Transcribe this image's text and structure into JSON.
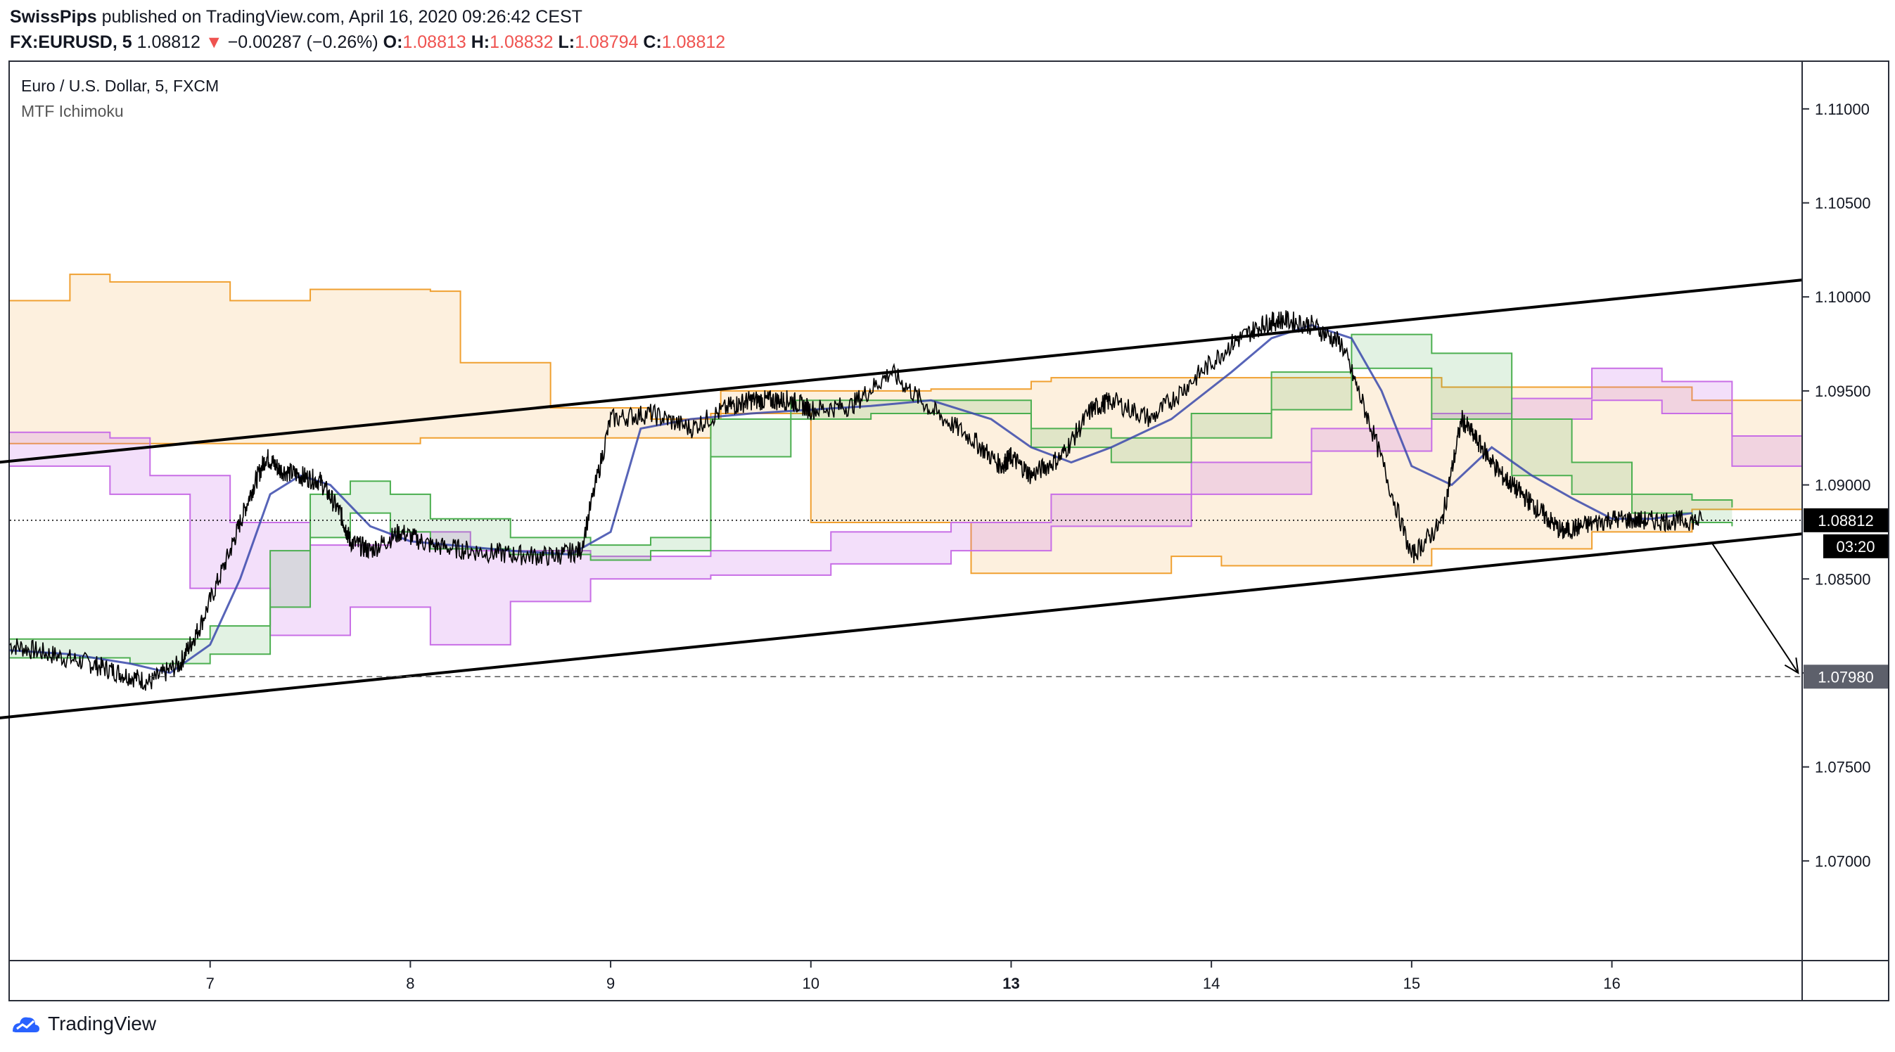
{
  "header": {
    "author": "SwissPips",
    "published": "published on TradingView.com, April 16, 2020 09:26:42 CEST",
    "symbol": "FX:EURUSD, 5",
    "last": "1.08812",
    "change_arrow": "▼",
    "change": "−0.00287 (−0.26%)",
    "o_label": "O:",
    "o_value": "1.08813",
    "h_label": "H:",
    "h_value": "1.08832",
    "l_label": "L:",
    "l_value": "1.08794",
    "c_label": "C:",
    "c_value": "1.08812"
  },
  "legend": {
    "instrument": "Euro / U.S. Dollar, 5, FXCM",
    "indicator": "MTF Ichimoku"
  },
  "footer": {
    "brand": "TradingView",
    "logo_icon": "tradingview-logo-icon"
  },
  "colors": {
    "price": "#000000",
    "cloud_orange": "#f0a030",
    "cloud_purple": "#c86ee6",
    "cloud_green": "#4caf50",
    "fast_blue": "#3949ab",
    "accent_red": "#ef5350"
  },
  "chart_data": {
    "type": "line",
    "title": "Euro / U.S. Dollar, 5, FXCM",
    "xlabel": "",
    "ylabel": "",
    "x_ticks": [
      "7",
      "8",
      "9",
      "10",
      "13",
      "14",
      "15",
      "16"
    ],
    "x_tick_positions": [
      0.5,
      1.5,
      2.5,
      3.5,
      4.5,
      5.5,
      6.5,
      7.5
    ],
    "xlim": [
      -0.5,
      8.45
    ],
    "y_ticks": [
      "1.11000",
      "1.10500",
      "1.10000",
      "1.09500",
      "1.09000",
      "1.08500",
      "1.08000",
      "1.07500",
      "1.07000"
    ],
    "y_tick_values": [
      1.11,
      1.105,
      1.1,
      1.095,
      1.09,
      1.085,
      1.08,
      1.075,
      1.07
    ],
    "ylim": [
      1.0647,
      1.1125
    ],
    "grid": false,
    "price_series": {
      "name": "",
      "x": [
        -0.5,
        -0.3,
        -0.1,
        0.05,
        0.2,
        0.35,
        0.45,
        0.6,
        0.7,
        0.78,
        0.85,
        0.95,
        1.05,
        1.15,
        1.2,
        1.3,
        1.45,
        1.6,
        1.8,
        2.0,
        2.2,
        2.35,
        2.5,
        2.7,
        2.9,
        3.1,
        3.2,
        3.3,
        3.4,
        3.5,
        3.7,
        3.9,
        4.1,
        4.3,
        4.45,
        4.5,
        4.6,
        4.75,
        4.9,
        5.0,
        5.2,
        5.4,
        5.6,
        5.75,
        5.85,
        6.0,
        6.15,
        6.3,
        6.5,
        6.65,
        6.75,
        6.85,
        6.95,
        7.05,
        7.15,
        7.25,
        7.35,
        7.5,
        7.65,
        7.8,
        7.95
      ],
      "y": [
        1.0815,
        1.081,
        1.0805,
        1.08,
        1.0795,
        1.0805,
        1.0825,
        1.0865,
        1.0895,
        1.0915,
        1.0908,
        1.0905,
        1.0902,
        1.0885,
        1.087,
        1.0865,
        1.0875,
        1.0868,
        1.0865,
        1.0863,
        1.0862,
        1.0865,
        1.0935,
        1.0938,
        1.093,
        1.0942,
        1.0945,
        1.0945,
        1.0945,
        1.094,
        1.0942,
        1.096,
        1.094,
        1.0925,
        1.091,
        1.0915,
        1.0905,
        1.0915,
        1.094,
        1.0945,
        1.0935,
        1.0955,
        1.0975,
        1.0985,
        1.0988,
        1.0985,
        1.0975,
        1.093,
        1.0862,
        1.088,
        1.0935,
        1.092,
        1.0905,
        1.0895,
        1.0885,
        1.0875,
        1.0878,
        1.0882,
        1.0881,
        1.0881,
        1.0881
      ]
    },
    "channel_upper": {
      "x": [
        -0.65,
        8.45
      ],
      "y": [
        1.0911,
        1.1009
      ]
    },
    "channel_lower": {
      "x": [
        -0.65,
        8.45
      ],
      "y": [
        1.0775,
        1.0874
      ]
    },
    "target_arrow": {
      "from": [
        8.0,
        1.0869
      ],
      "to": [
        8.43,
        1.08
      ]
    },
    "current_price": {
      "label": "1.08812",
      "value": 1.08812,
      "countdown": "03:20"
    },
    "target_level": {
      "label": "1.07980",
      "value": 1.0798
    },
    "cloud_orange": {
      "upper": {
        "x": [
          -0.5,
          -0.2,
          0.0,
          0.6,
          1.0,
          1.6,
          1.75,
          2.2,
          2.7,
          3.05,
          3.5,
          4.1,
          4.6,
          4.7,
          6.45,
          6.65,
          7.45,
          7.9,
          8.45
        ],
        "y": [
          1.0998,
          1.1012,
          1.1008,
          1.0998,
          1.1004,
          1.1003,
          1.0965,
          1.0941,
          1.0935,
          1.095,
          1.095,
          1.0951,
          1.0955,
          1.0957,
          1.0957,
          1.0952,
          1.0952,
          1.0945,
          1.0945
        ]
      },
      "lower": {
        "x": [
          -0.5,
          0.2,
          1.4,
          1.55,
          2.2,
          3.0,
          3.5,
          4.1,
          4.3,
          4.9,
          5.3,
          5.55,
          6.2,
          6.6,
          7.4,
          7.9,
          8.45
        ],
        "y": [
          1.0922,
          1.0922,
          1.0922,
          1.0925,
          1.0925,
          1.0938,
          1.088,
          1.088,
          1.0853,
          1.0853,
          1.0862,
          1.0857,
          1.0857,
          1.0866,
          1.0875,
          1.0887,
          1.0887
        ]
      }
    },
    "cloud_purple": {
      "upper": {
        "x": [
          -0.5,
          0.0,
          0.2,
          0.6,
          1.0,
          1.4,
          1.8,
          2.4,
          3.0,
          3.6,
          4.2,
          4.7,
          5.4,
          6.0,
          6.6,
          7.0,
          7.4,
          7.75,
          8.1,
          8.45
        ],
        "y": [
          1.0928,
          1.0925,
          1.0905,
          1.088,
          1.0868,
          1.0875,
          1.0865,
          1.0862,
          1.0865,
          1.0875,
          1.088,
          1.0895,
          1.0912,
          1.093,
          1.0938,
          1.0946,
          1.0962,
          1.0955,
          1.0926,
          1.0925
        ]
      },
      "lower": {
        "x": [
          -0.5,
          0.0,
          0.4,
          0.8,
          1.2,
          1.6,
          2.0,
          2.4,
          3.0,
          3.6,
          4.2,
          4.7,
          5.4,
          6.0,
          6.6,
          7.0,
          7.4,
          7.75,
          8.1,
          8.45
        ],
        "y": [
          1.091,
          1.0895,
          1.0845,
          1.082,
          1.0835,
          1.0815,
          1.0838,
          1.085,
          1.0852,
          1.0858,
          1.0865,
          1.0878,
          1.0895,
          1.0918,
          1.0935,
          1.0935,
          1.0945,
          1.0938,
          1.091,
          1.091
        ]
      }
    },
    "cloud_green": {
      "upper": {
        "x": [
          -0.5,
          0.1,
          0.5,
          0.8,
          1.0,
          1.2,
          1.4,
          1.6,
          2.0,
          2.4,
          2.7,
          3.0,
          3.4,
          3.8,
          4.2,
          4.6,
          5.0,
          5.4,
          5.8,
          6.2,
          6.6,
          7.0,
          7.3,
          7.6,
          7.9,
          8.1
        ],
        "y": [
          1.0818,
          1.0818,
          1.0825,
          1.0865,
          1.0895,
          1.0902,
          1.0895,
          1.0882,
          1.0872,
          1.0868,
          1.0872,
          1.0935,
          1.0945,
          1.0945,
          1.0945,
          1.093,
          1.0925,
          1.0938,
          1.096,
          1.098,
          1.097,
          1.0935,
          1.0912,
          1.0895,
          1.0892,
          1.0888
        ]
      },
      "lower": {
        "x": [
          -0.5,
          0.1,
          0.5,
          0.8,
          1.0,
          1.2,
          1.4,
          1.6,
          2.0,
          2.4,
          2.7,
          3.0,
          3.4,
          3.8,
          4.2,
          4.6,
          5.0,
          5.4,
          5.8,
          6.2,
          6.6,
          7.0,
          7.3,
          7.6,
          7.9,
          8.1
        ],
        "y": [
          1.0808,
          1.0805,
          1.081,
          1.0835,
          1.0872,
          1.0885,
          1.0875,
          1.0866,
          1.0863,
          1.086,
          1.0865,
          1.0915,
          1.0935,
          1.0938,
          1.0938,
          1.092,
          1.0912,
          1.0925,
          1.094,
          1.0962,
          1.0935,
          1.0905,
          1.0895,
          1.0885,
          1.088,
          1.0878
        ]
      }
    },
    "fast_line": {
      "name": "",
      "x": [
        -0.5,
        -0.2,
        0.1,
        0.3,
        0.5,
        0.65,
        0.8,
        0.95,
        1.1,
        1.3,
        1.5,
        1.7,
        2.0,
        2.3,
        2.5,
        2.65,
        2.9,
        3.2,
        3.5,
        3.8,
        4.1,
        4.4,
        4.6,
        4.8,
        5.0,
        5.3,
        5.6,
        5.8,
        6.0,
        6.2,
        6.35,
        6.5,
        6.7,
        6.9,
        7.1,
        7.3,
        7.5,
        7.7,
        7.9
      ],
      "y": [
        1.0812,
        1.081,
        1.0805,
        1.08,
        1.0815,
        1.085,
        1.0895,
        1.0905,
        1.09,
        1.0878,
        1.087,
        1.0868,
        1.0865,
        1.0863,
        1.0875,
        1.093,
        1.0935,
        1.0938,
        1.094,
        1.0942,
        1.0945,
        1.0935,
        1.092,
        1.0912,
        1.092,
        1.0935,
        1.096,
        1.0978,
        1.0985,
        1.0978,
        1.095,
        1.091,
        1.09,
        1.092,
        1.0905,
        1.0893,
        1.0882,
        1.0882,
        1.0885
      ]
    }
  }
}
